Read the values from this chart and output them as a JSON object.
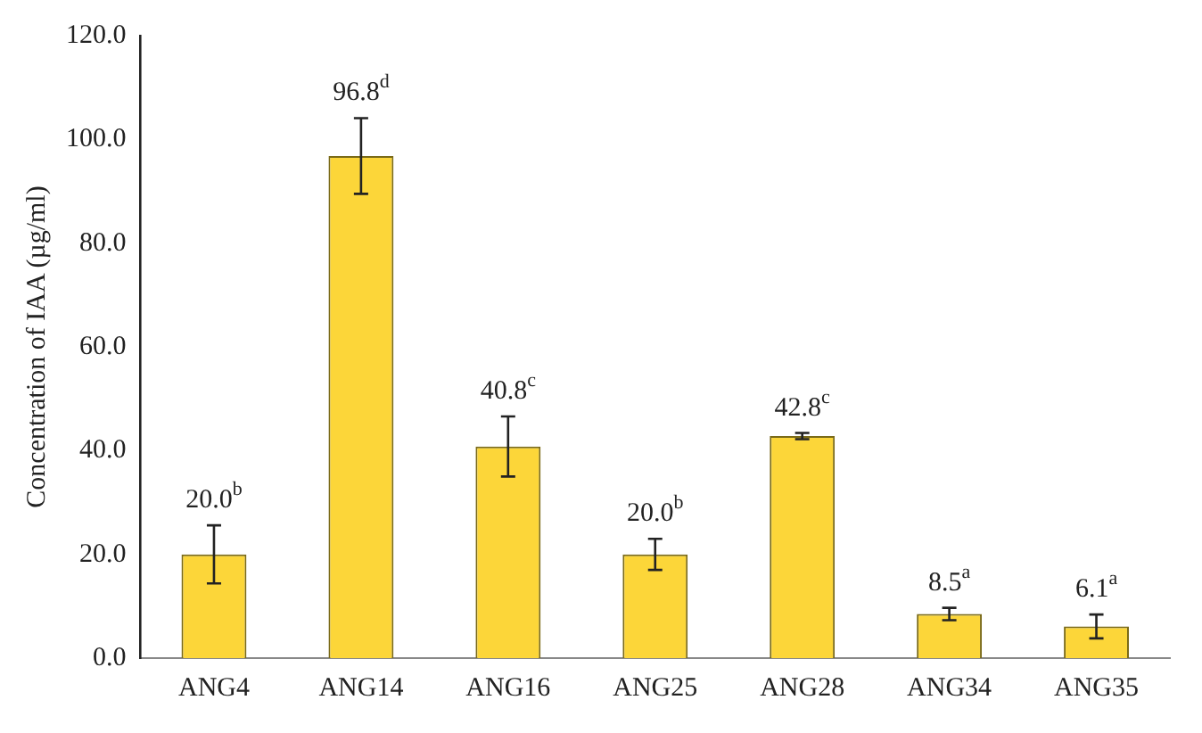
{
  "chart_data": {
    "type": "bar",
    "ylabel": "Concentration of IAA (µg/ml)",
    "categories": [
      "ANG4",
      "ANG14",
      "ANG16",
      "ANG25",
      "ANG28",
      "ANG34",
      "ANG35"
    ],
    "values": [
      20.0,
      96.8,
      40.8,
      20.0,
      42.8,
      8.5,
      6.1
    ],
    "errors": [
      5.6,
      7.3,
      5.8,
      3.0,
      0.6,
      1.2,
      2.3
    ],
    "value_labels": [
      "20.0$^{b}$",
      "96.8$^{d}$",
      "40.8$^{c}$",
      "20.0$^{b}$",
      "42.8$^{c}$",
      "8.5$^{a}$",
      "6.1$^{a}$"
    ],
    "color": "#fcd639",
    "ylim": [
      0,
      120
    ],
    "yticks": [
      {
        "value": 0,
        "label": "0.0"
      },
      {
        "value": 20,
        "label": "20.0"
      },
      {
        "value": 40,
        "label": "40.0"
      },
      {
        "value": 60,
        "label": "60.0"
      },
      {
        "value": 80,
        "label": "80.0"
      },
      {
        "value": 100,
        "label": "100.0"
      },
      {
        "value": 120,
        "label": "120.0"
      }
    ],
    "grid": false,
    "legend": false
  }
}
